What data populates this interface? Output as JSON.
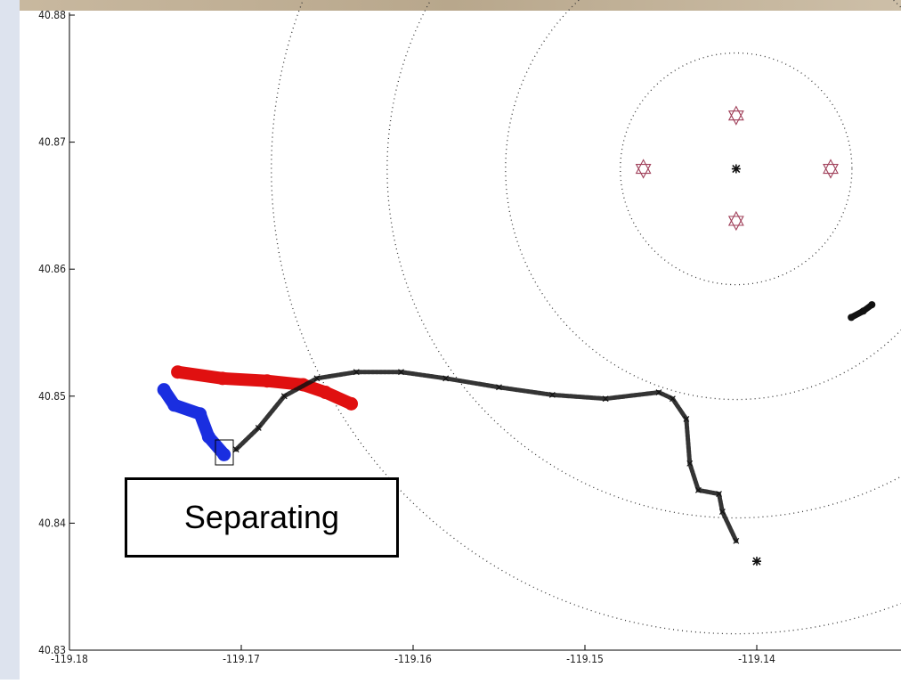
{
  "chart_data": {
    "type": "scatter",
    "annotation": "Separating",
    "xlim": [
      -119.18,
      -119.132
    ],
    "ylim": [
      40.83,
      40.88
    ],
    "xticks": [
      -119.18,
      -119.17,
      -119.16,
      -119.15,
      -119.14
    ],
    "yticks": [
      40.83,
      40.84,
      40.85,
      40.86,
      40.87,
      40.88
    ],
    "rings": {
      "x": -119.1412,
      "y": 40.8679,
      "radii": [
        0.00674,
        0.01342,
        0.02031,
        0.02705
      ]
    },
    "series": [
      {
        "color": "#e01010",
        "marker": "circle",
        "connect": true,
        "x": [
          -119.1737,
          -119.1711,
          -119.1685,
          -119.1664,
          -119.1651,
          -119.1636
        ],
        "y": [
          40.8519,
          40.8514,
          40.8512,
          40.8509,
          40.8503,
          40.8494
        ]
      },
      {
        "color": "#1a2ee0",
        "marker": "circle",
        "connect": true,
        "x": [
          -119.1745,
          -119.1739,
          -119.1724,
          -119.1719,
          -119.171
        ],
        "y": [
          40.8505,
          40.8493,
          40.8486,
          40.8468,
          40.8454
        ]
      },
      {
        "color": "#111111",
        "marker": "x",
        "connect": true,
        "x": [
          -119.1703,
          -119.169,
          -119.1675,
          -119.1656,
          -119.1633,
          -119.1607,
          -119.1581,
          -119.155,
          -119.1519,
          -119.1488,
          -119.1457,
          -119.1449,
          -119.1441,
          -119.1439,
          -119.1434,
          -119.1422,
          -119.142,
          -119.1412
        ],
        "y": [
          40.8458,
          40.8475,
          40.85,
          40.8514,
          40.8519,
          40.8519,
          40.8514,
          40.8507,
          40.8501,
          40.8498,
          40.8503,
          40.8498,
          40.8482,
          40.8447,
          40.8426,
          40.8423,
          40.8409,
          40.8386
        ]
      },
      {
        "color": "#111111",
        "marker": "blob",
        "connect": true,
        "x": [
          -119.1345,
          -119.1338,
          -119.1333
        ],
        "y": [
          40.8562,
          40.8567,
          40.8572
        ]
      },
      {
        "color": "#111111",
        "marker": "asterisk",
        "connect": false,
        "x": [
          -119.14,
          -119.1412
        ],
        "y": [
          40.837,
          40.8679
        ]
      },
      {
        "color": "#a0405a",
        "marker": "star",
        "connect": false,
        "x": [
          -119.1412,
          -119.1466,
          -119.1357,
          -119.1412
        ],
        "y": [
          40.8721,
          40.8679,
          40.8679,
          40.8638
        ]
      }
    ]
  }
}
